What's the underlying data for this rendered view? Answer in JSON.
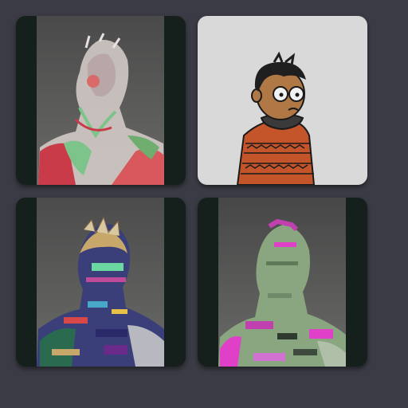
{
  "gallery": {
    "background": "#3b3b45",
    "tiles": [
      {
        "name": "glitch-figure-red-green",
        "palette": [
          "#c93b49",
          "#7cc48a",
          "#e8e0e0"
        ]
      },
      {
        "name": "cartoon-boy-poncho",
        "palette": [
          "#d9d9d9",
          "#c4552b",
          "#2b2b2b"
        ]
      },
      {
        "name": "glitch-figure-multicolor",
        "palette": [
          "#3d3a8a",
          "#c8a86a",
          "#2a6b4f"
        ]
      },
      {
        "name": "glitch-figure-green-magenta",
        "palette": [
          "#8aa680",
          "#e040c8",
          "#2f3a2f"
        ]
      }
    ]
  }
}
